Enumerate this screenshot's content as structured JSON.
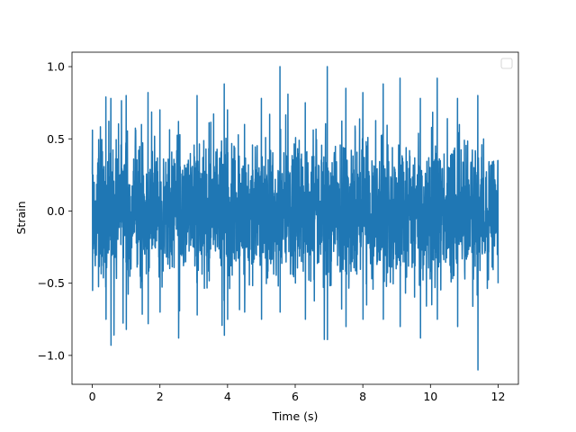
{
  "chart_data": {
    "type": "line",
    "title": "",
    "xlabel": "Time (s)",
    "ylabel": "Strain",
    "xlim": [
      -0.6,
      12.6
    ],
    "ylim": [
      -1.2,
      1.1
    ],
    "x_ticks": [
      0,
      2,
      4,
      6,
      8,
      10,
      12
    ],
    "x_tick_labels": [
      "0",
      "2",
      "4",
      "6",
      "8",
      "10",
      "12"
    ],
    "y_ticks": [
      -1.0,
      -0.5,
      0.0,
      0.5,
      1.0
    ],
    "y_tick_labels": [
      "−1.0",
      "−0.5",
      "0.0",
      "0.5",
      "1.0"
    ],
    "grid": false,
    "legend": {
      "placement": "upper right",
      "entries": []
    },
    "series": [
      {
        "color": "#1f77b4",
        "x_range": [
          0,
          12
        ],
        "typical_band": [
          -0.5,
          0.5
        ],
        "envelope": [
          {
            "x": 0.0,
            "max": 0.56,
            "min": -0.55
          },
          {
            "x": 0.4,
            "max": 0.79,
            "min": -0.75
          },
          {
            "x": 0.55,
            "max": 0.78,
            "min": -0.93
          },
          {
            "x": 1.0,
            "max": 0.8,
            "min": -0.82
          },
          {
            "x": 1.65,
            "max": 0.82,
            "min": -0.78
          },
          {
            "x": 2.0,
            "max": 0.7,
            "min": -0.7
          },
          {
            "x": 2.55,
            "max": 0.62,
            "min": -0.88
          },
          {
            "x": 3.1,
            "max": 0.8,
            "min": -0.72
          },
          {
            "x": 3.9,
            "max": 0.88,
            "min": -0.86
          },
          {
            "x": 4.0,
            "max": 0.7,
            "min": -0.75
          },
          {
            "x": 4.5,
            "max": 0.6,
            "min": -0.7
          },
          {
            "x": 5.0,
            "max": 0.78,
            "min": -0.75
          },
          {
            "x": 5.55,
            "max": 1.0,
            "min": -0.7
          },
          {
            "x": 6.3,
            "max": 0.75,
            "min": -0.75
          },
          {
            "x": 6.95,
            "max": 1.0,
            "min": -0.89
          },
          {
            "x": 7.5,
            "max": 0.85,
            "min": -0.8
          },
          {
            "x": 8.0,
            "max": 0.82,
            "min": -0.75
          },
          {
            "x": 8.6,
            "max": 0.88,
            "min": -0.75
          },
          {
            "x": 9.1,
            "max": 0.92,
            "min": -0.8
          },
          {
            "x": 9.7,
            "max": 0.78,
            "min": -0.88
          },
          {
            "x": 10.2,
            "max": 0.92,
            "min": -0.75
          },
          {
            "x": 10.8,
            "max": 0.78,
            "min": -0.8
          },
          {
            "x": 11.4,
            "max": 0.8,
            "min": -1.1
          },
          {
            "x": 12.0,
            "max": 0.35,
            "min": -0.5
          }
        ]
      }
    ]
  }
}
